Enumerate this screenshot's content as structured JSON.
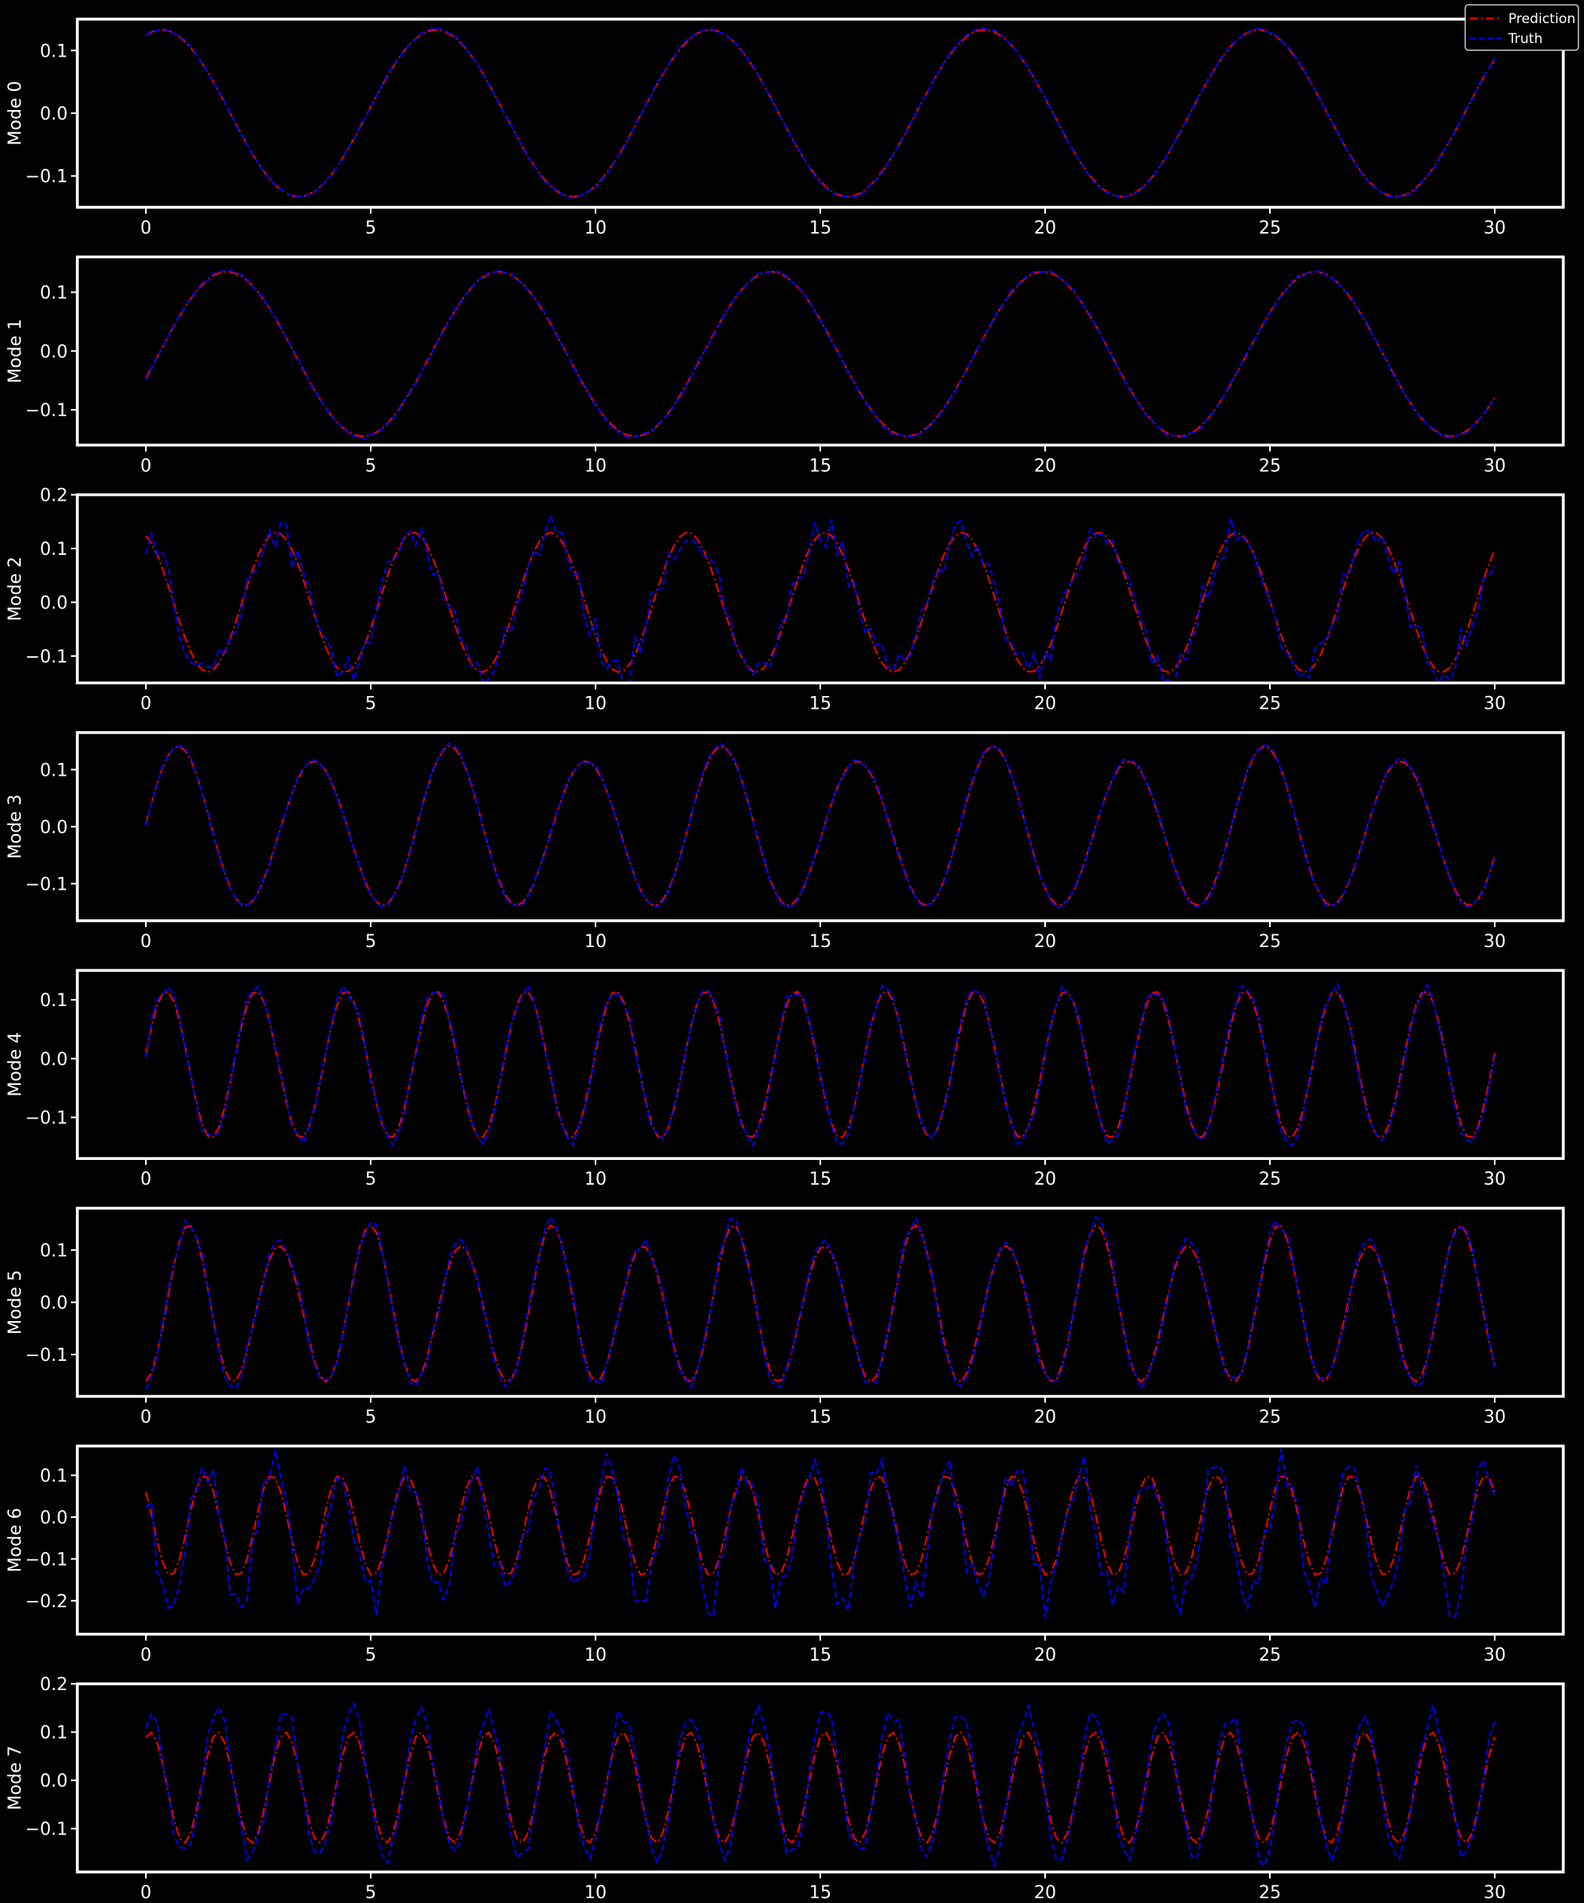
{
  "legend": {
    "items": [
      {
        "label": "Prediction",
        "color": "#ff0000",
        "dash": "dashdot"
      },
      {
        "label": "Truth",
        "color": "#0000ff",
        "dash": "dashed"
      }
    ]
  },
  "chart_data": {
    "type": "line",
    "background": "#000000",
    "axes_color": "#ffffff",
    "x_range": [
      0,
      30
    ],
    "x_ticks": [
      0,
      5,
      10,
      15,
      20,
      25,
      30
    ],
    "series_colors": {
      "prediction": "#ff0000",
      "truth": "#0000ff"
    },
    "panels": [
      {
        "ylabel": "Mode 0",
        "ylim": [
          -0.15,
          0.15
        ],
        "y_ticks": [
          -0.1,
          0.0,
          0.1
        ],
        "y_tick_labels": [
          "−0.1",
          "0.0",
          "0.1"
        ],
        "prediction": {
          "type": "sine",
          "amp": 0.133,
          "period": 6.1,
          "x0": 0.35,
          "offset": 0
        },
        "truth": {
          "type": "sine",
          "amp": 0.134,
          "period": 6.1,
          "x0": 0.35,
          "offset": 0,
          "noise": 0.002
        }
      },
      {
        "ylabel": "Mode 1",
        "ylim": [
          -0.16,
          0.16
        ],
        "y_ticks": [
          -0.1,
          0.0,
          0.1
        ],
        "y_tick_labels": [
          "−0.1",
          "0.0",
          "0.1"
        ],
        "prediction": {
          "type": "sine",
          "amp": 0.14,
          "period": 6.05,
          "x0": 1.8,
          "offset": -0.005
        },
        "truth": {
          "type": "sine",
          "amp": 0.141,
          "period": 6.05,
          "x0": 1.8,
          "offset": -0.005,
          "noise": 0.003
        }
      },
      {
        "ylabel": "Mode 2",
        "ylim": [
          -0.15,
          0.2
        ],
        "y_ticks": [
          -0.1,
          0.0,
          0.1,
          0.2
        ],
        "y_tick_labels": [
          "−0.1",
          "0.0",
          "0.1",
          "0.2"
        ],
        "prediction": {
          "type": "sine",
          "amp": 0.13,
          "period": 3.05,
          "x0": 2.9,
          "offset": 0
        },
        "truth": {
          "type": "sine",
          "amp": 0.13,
          "period": 3.05,
          "x0": 2.9,
          "offset": 0,
          "noise": 0.035
        }
      },
      {
        "ylabel": "Mode 3",
        "ylim": [
          -0.165,
          0.165
        ],
        "y_ticks": [
          -0.1,
          0.0,
          0.1
        ],
        "y_tick_labels": [
          "−0.1",
          "0.0",
          "0.1"
        ],
        "prediction": {
          "type": "sine",
          "amp": 0.133,
          "period": 3.02,
          "x0": 0.72,
          "offset": -0.005,
          "beat": 0.013
        },
        "truth": {
          "type": "sine",
          "amp": 0.135,
          "period": 3.02,
          "x0": 0.72,
          "offset": -0.005,
          "beat": 0.013,
          "noise": 0.004
        }
      },
      {
        "ylabel": "Mode 4",
        "ylim": [
          -0.17,
          0.15
        ],
        "y_ticks": [
          -0.1,
          0.0,
          0.1
        ],
        "y_tick_labels": [
          "−0.1",
          "0.0",
          "0.1"
        ],
        "prediction": {
          "type": "sine",
          "amp": 0.125,
          "period": 2.0,
          "x0": 0.45,
          "offset": -0.01
        },
        "truth": {
          "type": "sine",
          "amp": 0.13,
          "period": 2.0,
          "x0": 0.45,
          "offset": -0.01,
          "noise": 0.01
        }
      },
      {
        "ylabel": "Mode 5",
        "ylim": [
          -0.18,
          0.18
        ],
        "y_ticks": [
          -0.1,
          0.0,
          0.1
        ],
        "y_tick_labels": [
          "−0.1",
          "0.0",
          "0.1"
        ],
        "prediction": {
          "type": "sine",
          "amp": 0.14,
          "period": 2.02,
          "x0": 0.95,
          "offset": -0.012,
          "beat": 0.02
        },
        "truth": {
          "type": "sine",
          "amp": 0.145,
          "period": 2.02,
          "x0": 0.95,
          "offset": -0.012,
          "beat": 0.02,
          "noise": 0.012
        }
      },
      {
        "ylabel": "Mode 6",
        "ylim": [
          -0.28,
          0.17
        ],
        "y_ticks": [
          -0.2,
          -0.1,
          0.0,
          0.1
        ],
        "y_tick_labels": [
          "−0.2",
          "−0.1",
          "0.0",
          "0.1"
        ],
        "prediction": {
          "type": "sine",
          "amp": 0.12,
          "period": 1.5,
          "x0": 1.3,
          "offset": -0.02
        },
        "truth": {
          "type": "sine",
          "amp": 0.16,
          "period": 1.5,
          "x0": 1.3,
          "offset": -0.04,
          "noise": 0.05
        }
      },
      {
        "ylabel": "Mode 7",
        "ylim": [
          -0.19,
          0.2
        ],
        "y_ticks": [
          -0.1,
          0.0,
          0.1,
          0.2
        ],
        "y_tick_labels": [
          "−0.1",
          "0.0",
          "0.1",
          "0.2"
        ],
        "prediction": {
          "type": "sine",
          "amp": 0.115,
          "period": 1.5,
          "x0": 0.1,
          "offset": -0.015
        },
        "truth": {
          "type": "sine",
          "amp": 0.15,
          "period": 1.5,
          "x0": 0.1,
          "offset": -0.01,
          "noise": 0.02
        }
      }
    ]
  }
}
